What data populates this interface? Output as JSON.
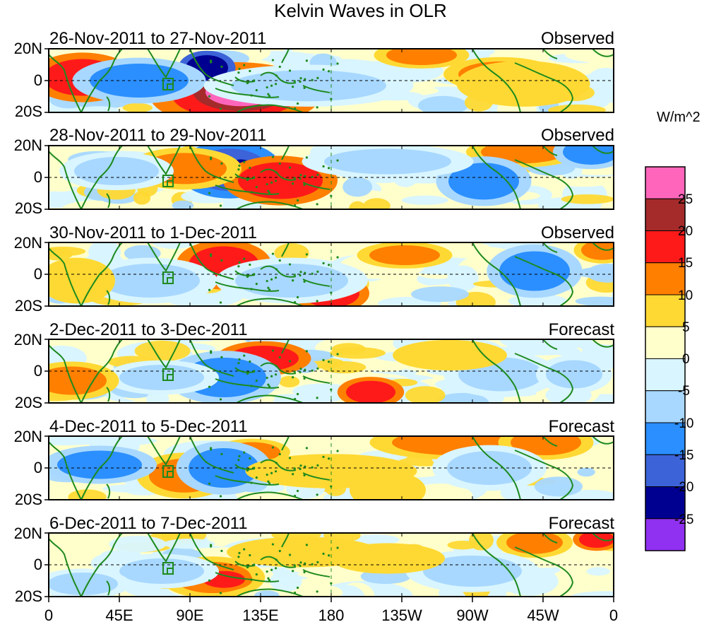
{
  "title": "Kelvin Waves in OLR",
  "units": "W/m^2",
  "panels": [
    {
      "dates": "26-Nov-2011 to 27-Nov-2011",
      "type": "Observed"
    },
    {
      "dates": "28-Nov-2011 to 29-Nov-2011",
      "type": "Observed"
    },
    {
      "dates": "30-Nov-2011 to 1-Dec-2011",
      "type": "Observed"
    },
    {
      "dates": "2-Dec-2011 to 3-Dec-2011",
      "type": "Forecast"
    },
    {
      "dates": "4-Dec-2011 to 5-Dec-2011",
      "type": "Forecast"
    },
    {
      "dates": "6-Dec-2011 to 7-Dec-2011",
      "type": "Forecast"
    }
  ],
  "lat_labels": [
    "20N",
    "0",
    "20S"
  ],
  "lon_labels": [
    "0",
    "45E",
    "90E",
    "135E",
    "180",
    "135W",
    "90W",
    "45W",
    "0"
  ],
  "colorbar": {
    "labels": [
      "25",
      "20",
      "15",
      "10",
      "5",
      "0",
      "-5",
      "-10",
      "-15",
      "-20",
      "-25"
    ],
    "colors": [
      "#ff66bb",
      "#a52a2a",
      "#ff1a1a",
      "#ff7f00",
      "#ffd933",
      "#ffffcc",
      "#d9f5ff",
      "#a8d8ff",
      "#2b8fff",
      "#3c63d8",
      "#000090",
      "#9030f0"
    ]
  }
}
